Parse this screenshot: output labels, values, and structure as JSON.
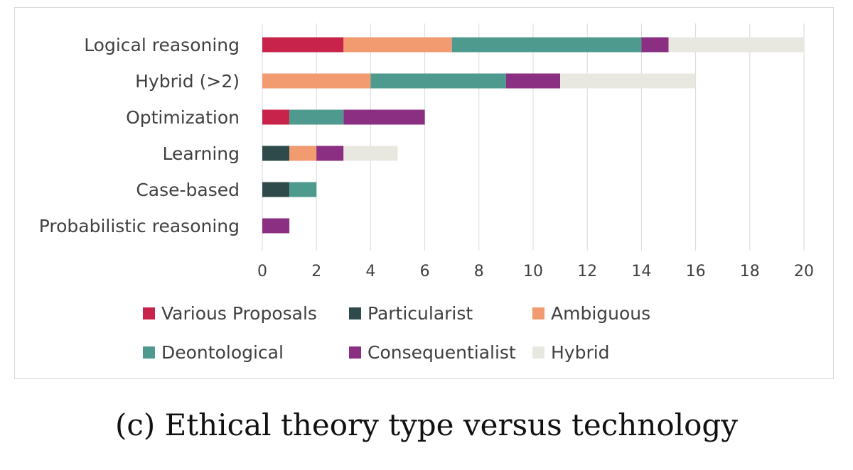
{
  "caption": "(c) Ethical theory type versus technology",
  "chart_data": {
    "type": "bar",
    "orientation": "horizontal",
    "stacked": true,
    "categories": [
      "Logical reasoning",
      "Hybrid (>2)",
      "Optimization",
      "Learning",
      "Case-based",
      "Probabilistic reasoning"
    ],
    "series": [
      {
        "name": "Various Proposals",
        "color": "#c8234a",
        "values": [
          3,
          0,
          1,
          0,
          0,
          0
        ]
      },
      {
        "name": "Particularist",
        "color": "#2f4a4a",
        "values": [
          0,
          0,
          0,
          1,
          1,
          0
        ]
      },
      {
        "name": "Ambiguous",
        "color": "#f29a70",
        "values": [
          4,
          4,
          0,
          1,
          0,
          0
        ]
      },
      {
        "name": "Deontological",
        "color": "#4f9a8f",
        "values": [
          7,
          5,
          2,
          0,
          1,
          0
        ]
      },
      {
        "name": "Consequentialist",
        "color": "#8b2f82",
        "values": [
          1,
          2,
          3,
          1,
          0,
          1
        ]
      },
      {
        "name": "Hybrid",
        "color": "#e8e8e0",
        "values": [
          5,
          5,
          0,
          2,
          0,
          0
        ]
      }
    ],
    "xlim": [
      0,
      20
    ],
    "xticks": [
      "0",
      "2",
      "4",
      "6",
      "8",
      "10",
      "12",
      "14",
      "16",
      "18",
      "20"
    ],
    "grid": true,
    "legend_position": "bottom"
  }
}
